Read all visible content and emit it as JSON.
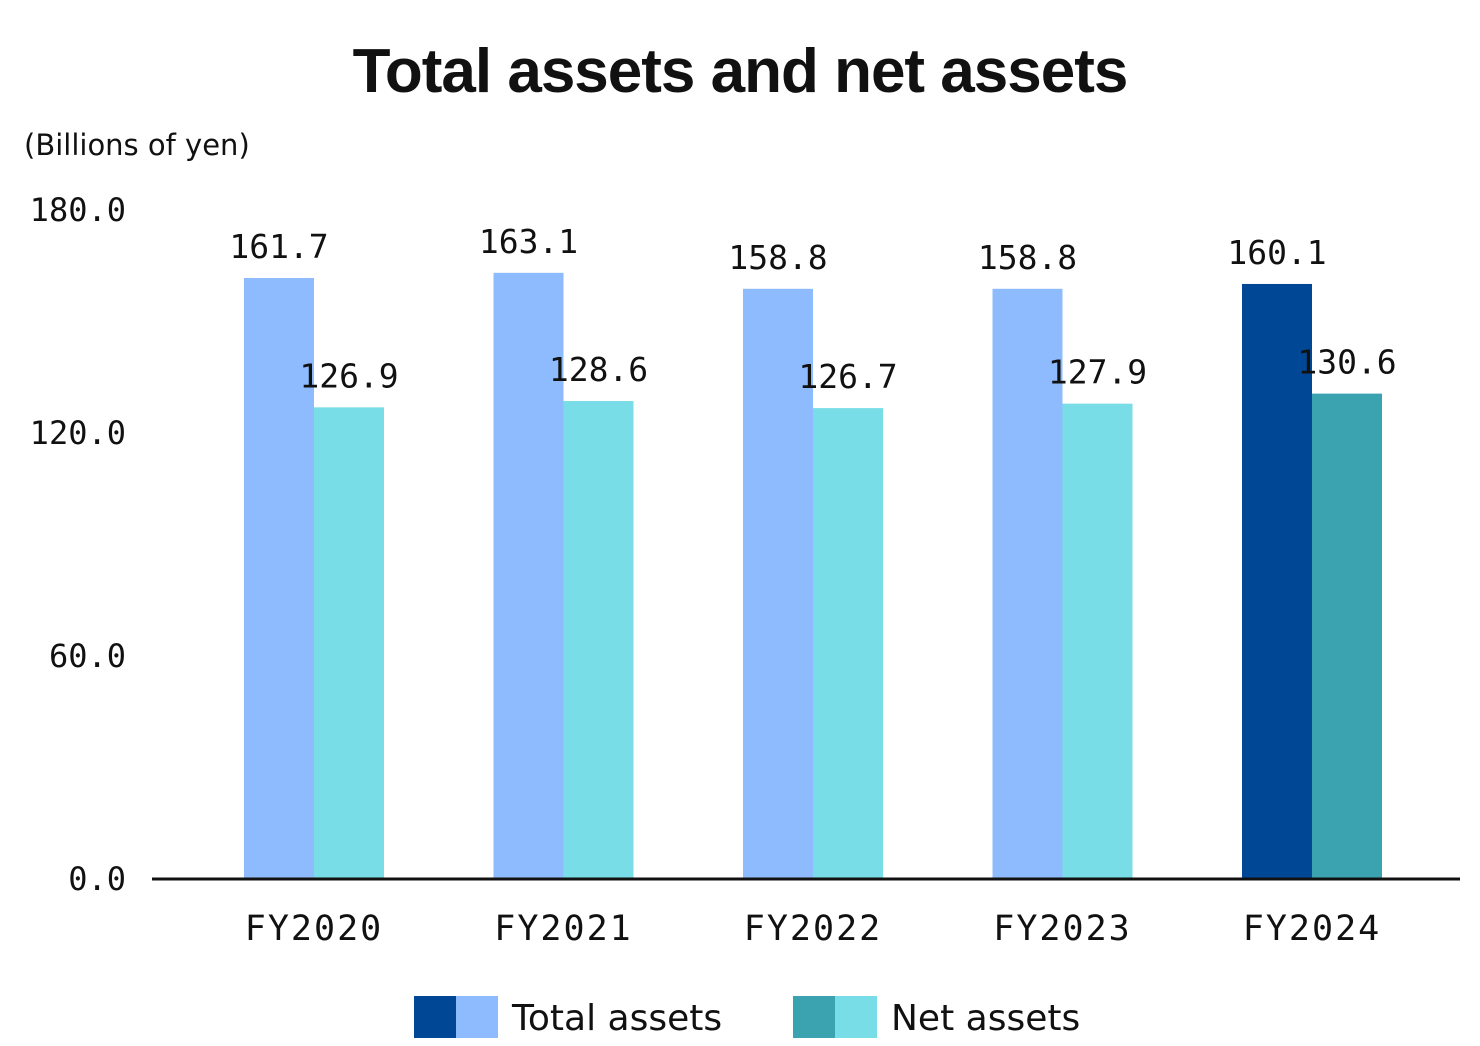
{
  "chart_data": {
    "type": "bar",
    "title": "Total assets and net assets",
    "unit_label": "(Billions of yen)",
    "categories": [
      "FY2020",
      "FY2021",
      "FY2022",
      "FY2023",
      "FY2024"
    ],
    "series": [
      {
        "name": "Total assets",
        "values": [
          161.7,
          163.1,
          158.8,
          158.8,
          160.1
        ],
        "labels": [
          "161.7",
          "163.1",
          "158.8",
          "158.8",
          "160.1"
        ],
        "color": "#8ebbfd",
        "highlight_color": "#004896"
      },
      {
        "name": "Net assets",
        "values": [
          126.9,
          128.6,
          126.7,
          127.9,
          130.6
        ],
        "labels": [
          "126.9",
          "128.6",
          "126.7",
          "127.9",
          "130.6"
        ],
        "color": "#78dde6",
        "highlight_color": "#3ba3b0"
      }
    ],
    "highlight_category_index": 4,
    "ylim": [
      0,
      180
    ],
    "yticks": [
      0,
      60,
      120,
      180
    ],
    "ytick_labels": [
      "0.0",
      "60.0",
      "120.0",
      "180.0"
    ],
    "grid": false,
    "legend_position": "bottom"
  }
}
